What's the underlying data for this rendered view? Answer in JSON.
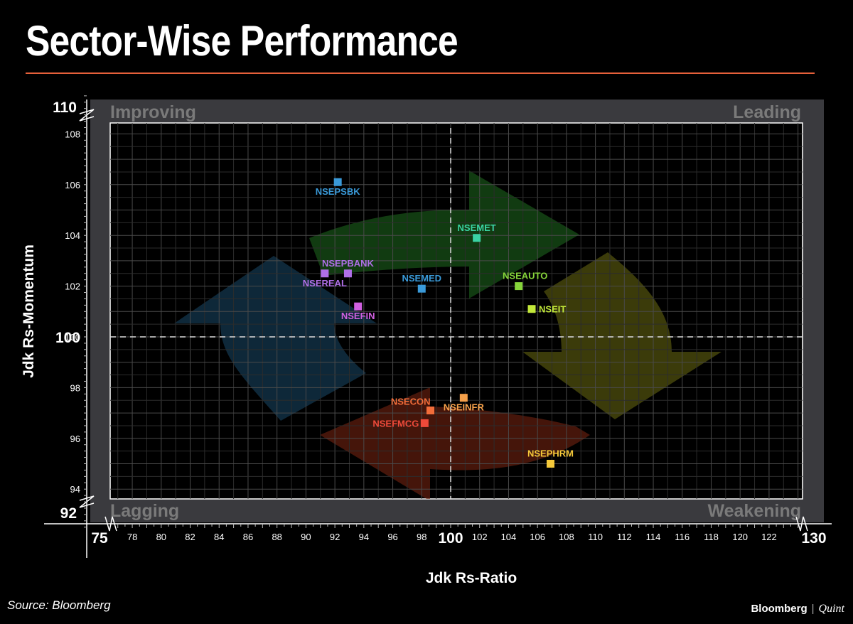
{
  "title": "Sector-Wise Performance",
  "source": "Source: Bloomberg",
  "brand": {
    "name": "Bloomberg",
    "partner": "Quint"
  },
  "chart_data": {
    "type": "scatter",
    "title": "",
    "xlabel": "Jdk Rs-Ratio",
    "ylabel": "Jdk Rs-Momentum",
    "xlim": [
      75,
      130
    ],
    "ylim": [
      92,
      110
    ],
    "x_axis_end_labels": [
      "75",
      "130"
    ],
    "y_axis_end_labels": [
      "92",
      "110"
    ],
    "x_ticks": [
      78,
      80,
      82,
      84,
      86,
      88,
      90,
      92,
      94,
      96,
      98,
      100,
      102,
      104,
      106,
      108,
      110,
      112,
      114,
      116,
      118,
      120,
      122
    ],
    "y_ticks": [
      94,
      96,
      98,
      100,
      102,
      104,
      106,
      108
    ],
    "reference_lines": {
      "x": 100,
      "y": 100
    },
    "quadrants": [
      "Improving",
      "Leading",
      "Lagging",
      "Weakening"
    ],
    "grid": true,
    "points": [
      {
        "name": "NSEPSBK",
        "x": 92.2,
        "y": 106.1,
        "color": "#3a9ad9"
      },
      {
        "name": "NSEMET",
        "x": 101.8,
        "y": 103.9,
        "color": "#3ad3a3"
      },
      {
        "name": "NSEPBANK",
        "x": 92.9,
        "y": 102.5,
        "color": "#b070e8"
      },
      {
        "name": "NSEREAL",
        "x": 91.3,
        "y": 102.5,
        "color": "#b070e8"
      },
      {
        "name": "NSEMED",
        "x": 98.0,
        "y": 101.9,
        "color": "#3a9ad9"
      },
      {
        "name": "NSEAUTO",
        "x": 104.7,
        "y": 102.0,
        "color": "#86d43a"
      },
      {
        "name": "NSEIT",
        "x": 105.6,
        "y": 101.1,
        "color": "#c2e83a"
      },
      {
        "name": "NSEFIN",
        "x": 93.6,
        "y": 101.2,
        "color": "#d060e0"
      },
      {
        "name": "NSEINFR",
        "x": 100.9,
        "y": 97.6,
        "color": "#f5a04a"
      },
      {
        "name": "NSECON",
        "x": 98.6,
        "y": 97.1,
        "color": "#f26d3a"
      },
      {
        "name": "NSEFMCG",
        "x": 98.2,
        "y": 96.6,
        "color": "#ee4a3a"
      },
      {
        "name": "NSEPHRM",
        "x": 106.9,
        "y": 95.0,
        "color": "#f5c93a"
      }
    ]
  }
}
